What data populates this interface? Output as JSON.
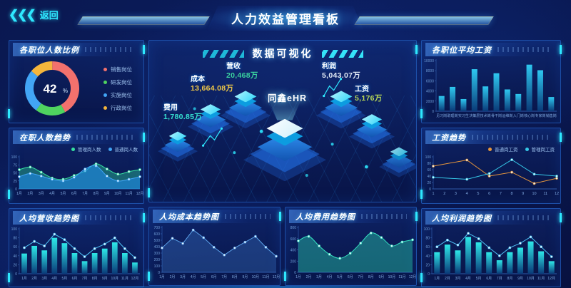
{
  "header": {
    "back_label": "返回",
    "title": "人力效益管理看板"
  },
  "left": {
    "ratio": {
      "title": "各职位人数比例",
      "chart_data": {
        "type": "donut",
        "center_value": "42",
        "center_unit": "%",
        "slices": [
          {
            "label": "销售岗位",
            "value": 42,
            "color": "#f2716d"
          },
          {
            "label": "研发岗位",
            "value": 18,
            "color": "#4fd35f"
          },
          {
            "label": "实施岗位",
            "value": 26,
            "color": "#42a5f5"
          },
          {
            "label": "行政岗位",
            "value": 14,
            "color": "#f5b63c"
          }
        ]
      }
    },
    "headcount": {
      "title": "在职人数趋势",
      "chart_data": {
        "type": "line",
        "ml": 14,
        "ymax": 100,
        "yticks": [
          0,
          25,
          50,
          75,
          100
        ],
        "categories": [
          "1月",
          "2月",
          "3月",
          "4月",
          "5月",
          "6月",
          "7月",
          "8月",
          "9月",
          "10月",
          "11月",
          "12月"
        ],
        "series": [
          {
            "name": "管理岗人数",
            "color": "#35e0a0",
            "fill": "rgba(46,213,160,0.40)",
            "smooth": true,
            "values": [
              60,
              68,
              52,
              34,
              30,
              42,
              56,
              78,
              62,
              46,
              54,
              60
            ]
          },
          {
            "name": "普通岗人数",
            "color": "#42a5f5",
            "fill": "rgba(33,140,243,0.55)",
            "smooth": true,
            "values": [
              38,
              48,
              40,
              30,
              25,
              36,
              62,
              72,
              40,
              25,
              30,
              38
            ]
          }
        ],
        "legend_position": "top-right"
      }
    },
    "revenue": {
      "title": "人均营收趋势图",
      "chart_data": {
        "type": "barline",
        "ml": 14,
        "ymax": 100,
        "yticks": [
          0,
          20,
          40,
          60,
          80,
          100
        ],
        "categories": [
          "1月",
          "2月",
          "3月",
          "4月",
          "5月",
          "6月",
          "7月",
          "8月",
          "9月",
          "10月",
          "11月",
          "12月"
        ],
        "bars": [
          45,
          62,
          52,
          80,
          68,
          46,
          28,
          46,
          56,
          70,
          46,
          25
        ],
        "bar_color_top": "#2ee8e8",
        "bar_color_bottom": "#0a3a78",
        "series": [
          {
            "name": "营收趋势",
            "color": "#4fc3f7",
            "values": [
              58,
              72,
              62,
              88,
              76,
              56,
              38,
              56,
              66,
              80,
              56,
              36
            ]
          }
        ]
      }
    }
  },
  "center": {
    "viz": {
      "title": "数据可视化",
      "brand": "同鑫eHR",
      "metrics": [
        {
          "name": "费用",
          "value": "1,780.85万",
          "color": "#35e0d0"
        },
        {
          "name": "成本",
          "value": "13,664.08万",
          "color": "#f0c948"
        },
        {
          "name": "营收",
          "value": "20,468万",
          "color": "#3ad29f"
        },
        {
          "name": "利润",
          "value": "5,043.07万",
          "color": "#dfe8f5"
        },
        {
          "name": "工资",
          "value": "5,176万",
          "color": "#b8d957"
        }
      ]
    },
    "cost": {
      "title": "人均成本趋势图",
      "chart_data": {
        "type": "line",
        "ml": 18,
        "ymax": 700,
        "yticks": [
          0,
          100,
          200,
          300,
          400,
          500,
          600,
          700
        ],
        "categories": [
          "1月",
          "2月",
          "3月",
          "4月",
          "5月",
          "6月",
          "7月",
          "8月",
          "9月",
          "10月",
          "11月",
          "12月"
        ],
        "series": [
          {
            "name": "人均成本",
            "color": "#5aa0e8",
            "fill": "rgba(60,120,200,0.35)",
            "smooth": false,
            "values": [
              380,
              530,
              450,
              660,
              540,
              390,
              270,
              380,
              470,
              560,
              390,
              250
            ]
          }
        ]
      }
    },
    "expense": {
      "title": "人均费用趋势图",
      "chart_data": {
        "type": "line",
        "ml": 18,
        "ymax": 800,
        "yticks": [
          0,
          200,
          400,
          600,
          800
        ],
        "categories": [
          "1月",
          "2月",
          "3月",
          "4月",
          "5月",
          "6月",
          "7月",
          "8月",
          "9月",
          "10月",
          "11月",
          "12月"
        ],
        "series": [
          {
            "name": "人均费用",
            "color": "#35e0c0",
            "fill": "rgba(40,200,170,0.45)",
            "smooth": true,
            "values": [
              560,
              640,
              470,
              320,
              250,
              340,
              520,
              700,
              620,
              470,
              540,
              580
            ]
          }
        ]
      }
    }
  },
  "right": {
    "salary": {
      "title": "各职位平均工资",
      "chart_data": {
        "type": "bar",
        "ml": 20,
        "ymax": 10000,
        "yticks": [
          0,
          2000,
          4000,
          6000,
          8000,
          10000
        ],
        "categories": [
          "见习岗",
          "助理岗",
          "实习生",
          "决策层",
          "技术岗",
          "骨干岗",
          "运维岗",
          "入门岗",
          "核心岗",
          "专家岗",
          "销售岗"
        ],
        "bars": [
          3000,
          4800,
          2400,
          8300,
          4900,
          7500,
          4300,
          3400,
          9200,
          8100,
          2800
        ],
        "bar_color_top": "#2ec8f0",
        "bar_color_bottom": "#0a3a78"
      }
    },
    "salary_trend": {
      "title": "工资趋势",
      "chart_data": {
        "type": "line2",
        "ml": 16,
        "ymax": 100,
        "yticks": [
          0,
          20,
          40,
          60,
          80,
          100
        ],
        "xticks": [
          1,
          2,
          3,
          4,
          5,
          6,
          7,
          8,
          9,
          10,
          11,
          12
        ],
        "series": [
          {
            "name": "普通岗工资",
            "color": "#e8973c",
            "x": [
              1,
              4,
              6,
              8,
              10,
              12
            ],
            "values": [
              71,
              90,
              40,
              52,
              17,
              33
            ]
          },
          {
            "name": "管理岗工资",
            "color": "#35c8e8",
            "x": [
              1,
              4,
              6,
              8,
              10,
              12
            ],
            "values": [
              36,
              30,
              48,
              91,
              46,
              40
            ]
          }
        ],
        "legend_position": "top-right"
      }
    },
    "profit": {
      "title": "人均利润趋势图",
      "chart_data": {
        "type": "barline",
        "ml": 14,
        "ymax": 100,
        "yticks": [
          0,
          20,
          40,
          60,
          80,
          100
        ],
        "categories": [
          "1月",
          "2月",
          "3月",
          "4月",
          "5月",
          "6月",
          "7月",
          "8月",
          "9月",
          "10月",
          "11月",
          "12月"
        ],
        "bars": [
          48,
          65,
          52,
          82,
          70,
          48,
          30,
          48,
          58,
          72,
          50,
          28
        ],
        "bar_color_top": "#2ee8e8",
        "bar_color_bottom": "#0a3a78",
        "series": [
          {
            "name": "利润趋势",
            "color": "#4fc3f7",
            "values": [
              60,
              75,
              64,
              90,
              78,
              58,
              40,
              58,
              68,
              82,
              60,
              38
            ]
          }
        ]
      }
    }
  }
}
